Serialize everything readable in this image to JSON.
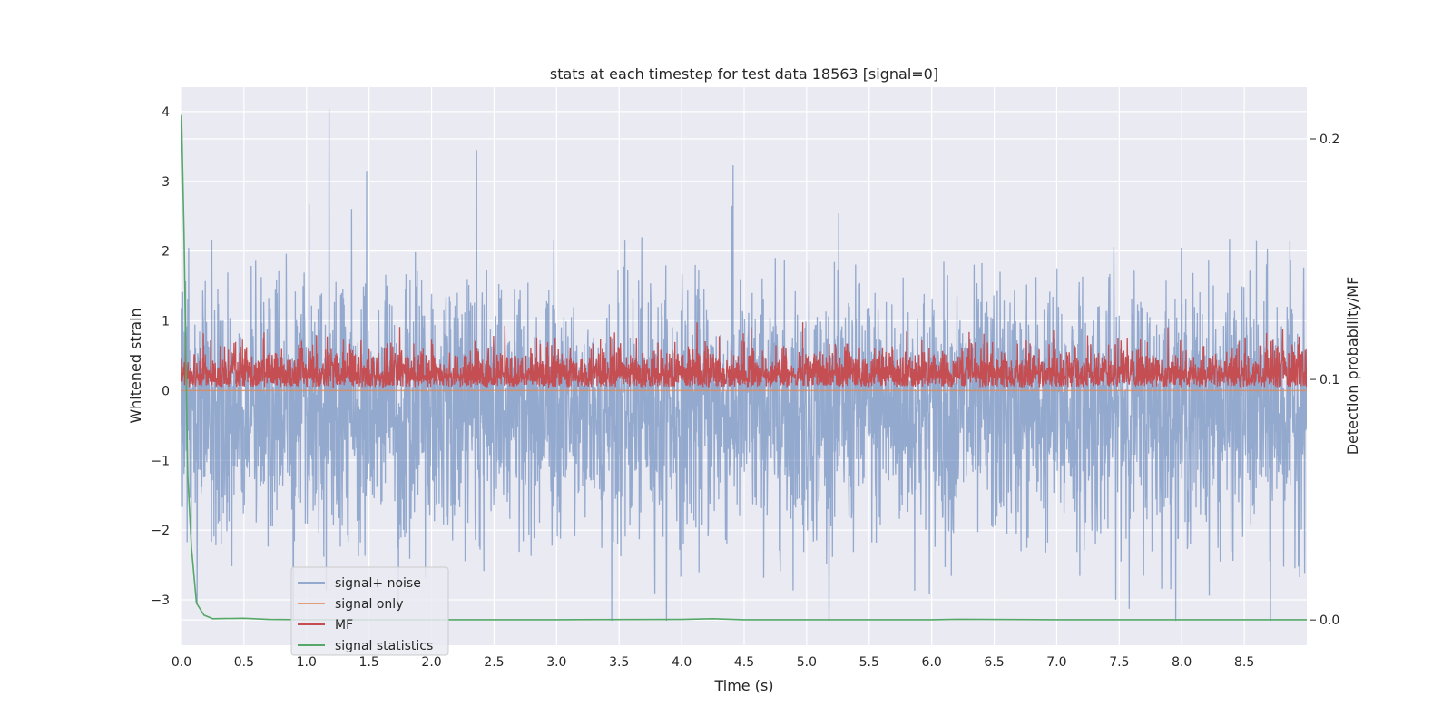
{
  "chart_data": {
    "type": "line",
    "title": "stats at each timestep for test data 18563 [signal=0]",
    "xlabel": "Time (s)",
    "ylabel": "Whitened strain",
    "y2label": "Detection probability/MF",
    "xlim": [
      0,
      9.0
    ],
    "ylim": [
      -3.65,
      4.35
    ],
    "y2lim": [
      -0.0105,
      0.2215
    ],
    "x_ticks": [
      0.0,
      0.5,
      1.0,
      1.5,
      2.0,
      2.5,
      3.0,
      3.5,
      4.0,
      4.5,
      5.0,
      5.5,
      6.0,
      6.5,
      7.0,
      7.5,
      8.0,
      8.5
    ],
    "x_tick_labels": [
      "0.0",
      "0.5",
      "1.0",
      "1.5",
      "2.0",
      "2.5",
      "3.0",
      "3.5",
      "4.0",
      "4.5",
      "5.0",
      "5.5",
      "6.0",
      "6.5",
      "7.0",
      "7.5",
      "8.0",
      "8.5"
    ],
    "y_ticks": [
      -3,
      -2,
      -1,
      0,
      1,
      2,
      3,
      4
    ],
    "y_tick_labels": [
      "−3",
      "−2",
      "−1",
      "0",
      "1",
      "2",
      "3",
      "4"
    ],
    "y2_ticks": [
      0.0,
      0.1,
      0.2
    ],
    "y2_tick_labels": [
      "0.0",
      "0.1",
      "0.2"
    ],
    "grid": true,
    "legend_position": "lower-left",
    "series": [
      {
        "name": "signal+ noise",
        "axis": "left",
        "color": "#4c72b0",
        "description": "dense noisy strain, roughly between -3.2 and 4.0",
        "sample_peaks": [
          {
            "x": 1.18,
            "y": 4.03
          },
          {
            "x": 2.36,
            "y": 3.45
          },
          {
            "x": 1.48,
            "y": 3.15
          },
          {
            "x": 4.41,
            "y": 3.23
          },
          {
            "x": 8.71,
            "y": -3.3
          }
        ],
        "range": [
          -3.3,
          4.03
        ]
      },
      {
        "name": "signal only",
        "axis": "left",
        "color": "#dd8452",
        "x": [
          0.0,
          9.0
        ],
        "y": [
          0.0,
          0.0
        ]
      },
      {
        "name": "MF",
        "axis": "left",
        "color": "#c44e52",
        "range": [
          0.0,
          0.98
        ]
      },
      {
        "name": "signal statistics",
        "axis": "right",
        "color": "#55a868",
        "x": [
          0.0,
          0.02,
          0.05,
          0.08,
          0.12,
          0.18,
          0.25,
          0.35,
          0.5,
          0.7,
          1.0,
          2.0,
          3.0,
          4.0,
          4.25,
          4.5,
          5.0,
          6.0,
          6.2,
          7.0,
          8.0,
          9.0
        ],
        "y": [
          0.21,
          0.16,
          0.06,
          0.03,
          0.007,
          0.002,
          0.0005,
          0.0006,
          0.0007,
          0.0002,
          0.0001,
          0.0001,
          0.0001,
          0.0002,
          0.0005,
          0.0001,
          0.0001,
          0.0001,
          0.0003,
          0.0001,
          0.0001,
          0.0001
        ]
      }
    ]
  }
}
